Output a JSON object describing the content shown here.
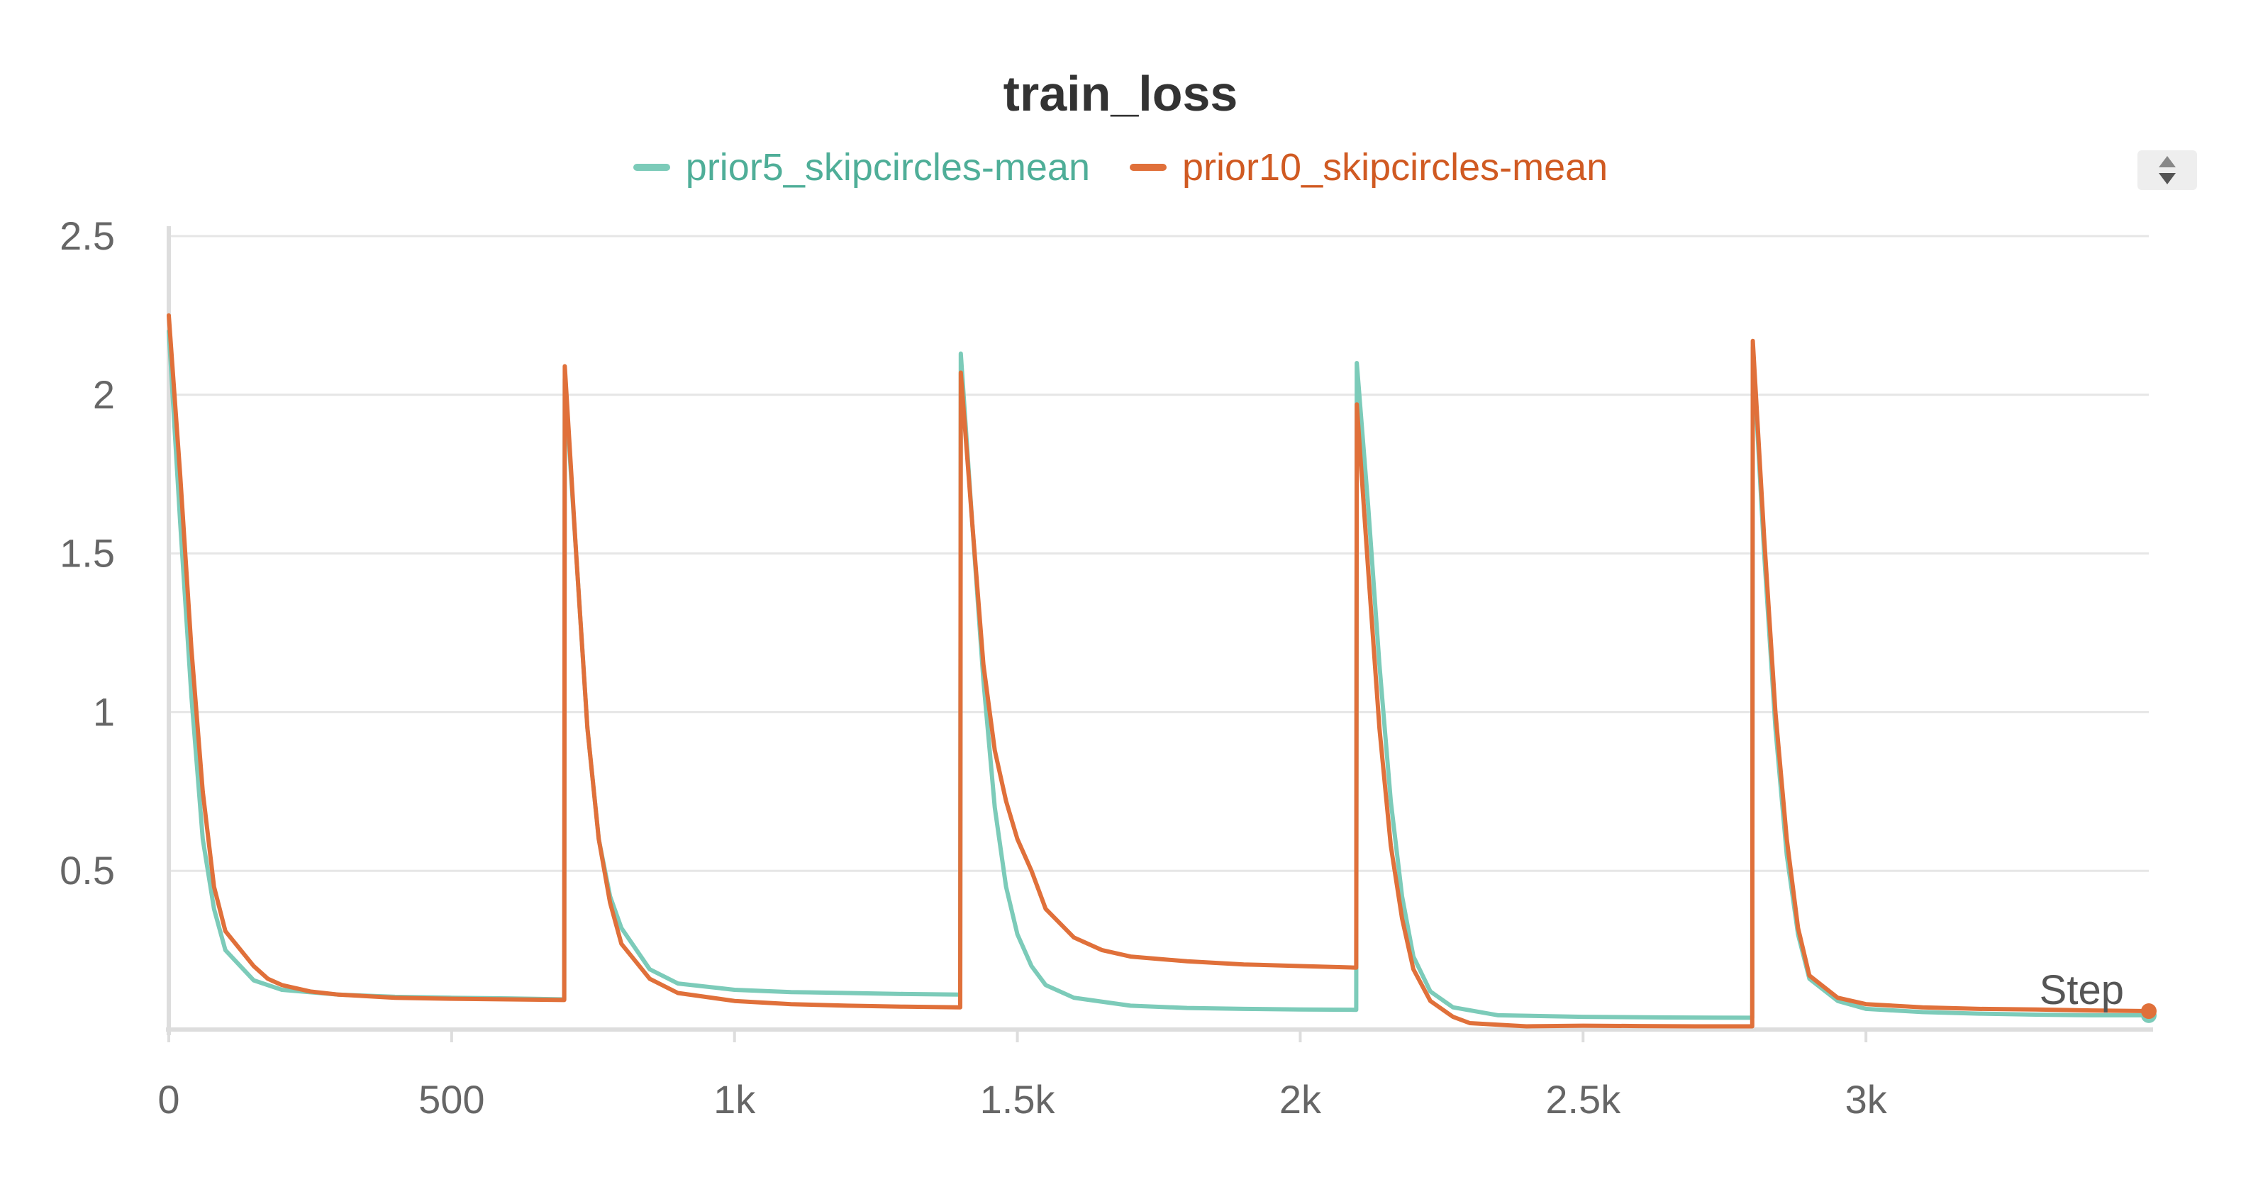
{
  "chart_data": {
    "type": "line",
    "title": "train_loss",
    "xlabel": "Step",
    "ylabel": "",
    "xlim": [
      0,
      3500
    ],
    "ylim": [
      0,
      2.5
    ],
    "grid": true,
    "legend_position": "top-center",
    "x_ticks": [
      {
        "value": 0,
        "label": "0"
      },
      {
        "value": 500,
        "label": "500"
      },
      {
        "value": 1000,
        "label": "1k"
      },
      {
        "value": 1500,
        "label": "1.5k"
      },
      {
        "value": 2000,
        "label": "2k"
      },
      {
        "value": 2500,
        "label": "2.5k"
      },
      {
        "value": 3000,
        "label": "3k"
      }
    ],
    "y_ticks": [
      {
        "value": 0.5,
        "label": "0.5"
      },
      {
        "value": 1,
        "label": "1"
      },
      {
        "value": 1.5,
        "label": "1.5"
      },
      {
        "value": 2,
        "label": "2"
      },
      {
        "value": 2.5,
        "label": "2.5"
      }
    ],
    "series": [
      {
        "name": "prior5_skipcircles-mean",
        "color": "#7ccbb9",
        "points": [
          [
            0,
            2.2
          ],
          [
            20,
            1.6
          ],
          [
            40,
            1.05
          ],
          [
            60,
            0.6
          ],
          [
            80,
            0.38
          ],
          [
            100,
            0.25
          ],
          [
            150,
            0.155
          ],
          [
            200,
            0.125
          ],
          [
            300,
            0.11
          ],
          [
            400,
            0.103
          ],
          [
            500,
            0.1
          ],
          [
            600,
            0.098
          ],
          [
            699,
            0.095
          ],
          [
            700,
            2.05
          ],
          [
            720,
            1.5
          ],
          [
            740,
            0.95
          ],
          [
            760,
            0.6
          ],
          [
            780,
            0.42
          ],
          [
            800,
            0.32
          ],
          [
            850,
            0.19
          ],
          [
            900,
            0.145
          ],
          [
            1000,
            0.125
          ],
          [
            1100,
            0.118
          ],
          [
            1200,
            0.115
          ],
          [
            1300,
            0.112
          ],
          [
            1399,
            0.11
          ],
          [
            1400,
            2.13
          ],
          [
            1420,
            1.6
          ],
          [
            1440,
            1.1
          ],
          [
            1460,
            0.7
          ],
          [
            1480,
            0.45
          ],
          [
            1500,
            0.3
          ],
          [
            1525,
            0.2
          ],
          [
            1550,
            0.14
          ],
          [
            1600,
            0.1
          ],
          [
            1700,
            0.075
          ],
          [
            1800,
            0.068
          ],
          [
            1900,
            0.065
          ],
          [
            2000,
            0.063
          ],
          [
            2099,
            0.062
          ],
          [
            2100,
            2.1
          ],
          [
            2120,
            1.65
          ],
          [
            2140,
            1.15
          ],
          [
            2160,
            0.72
          ],
          [
            2180,
            0.42
          ],
          [
            2200,
            0.23
          ],
          [
            2230,
            0.12
          ],
          [
            2270,
            0.07
          ],
          [
            2350,
            0.045
          ],
          [
            2500,
            0.04
          ],
          [
            2650,
            0.038
          ],
          [
            2799,
            0.037
          ],
          [
            2800,
            2.15
          ],
          [
            2820,
            1.5
          ],
          [
            2840,
            0.95
          ],
          [
            2860,
            0.55
          ],
          [
            2880,
            0.3
          ],
          [
            2900,
            0.16
          ],
          [
            2950,
            0.09
          ],
          [
            3000,
            0.065
          ],
          [
            3100,
            0.055
          ],
          [
            3200,
            0.05
          ],
          [
            3300,
            0.047
          ],
          [
            3400,
            0.045
          ],
          [
            3500,
            0.045
          ]
        ]
      },
      {
        "name": "prior10_skipcircles-mean",
        "color": "#e0703a",
        "points": [
          [
            0,
            2.25
          ],
          [
            20,
            1.75
          ],
          [
            40,
            1.2
          ],
          [
            60,
            0.75
          ],
          [
            80,
            0.45
          ],
          [
            100,
            0.31
          ],
          [
            150,
            0.2
          ],
          [
            175,
            0.16
          ],
          [
            200,
            0.14
          ],
          [
            250,
            0.12
          ],
          [
            300,
            0.11
          ],
          [
            400,
            0.1
          ],
          [
            500,
            0.097
          ],
          [
            600,
            0.095
          ],
          [
            699,
            0.093
          ],
          [
            700,
            2.09
          ],
          [
            720,
            1.5
          ],
          [
            740,
            0.95
          ],
          [
            760,
            0.6
          ],
          [
            780,
            0.4
          ],
          [
            800,
            0.27
          ],
          [
            850,
            0.16
          ],
          [
            900,
            0.115
          ],
          [
            1000,
            0.09
          ],
          [
            1100,
            0.08
          ],
          [
            1200,
            0.075
          ],
          [
            1300,
            0.072
          ],
          [
            1399,
            0.07
          ],
          [
            1400,
            2.07
          ],
          [
            1420,
            1.6
          ],
          [
            1440,
            1.15
          ],
          [
            1460,
            0.88
          ],
          [
            1480,
            0.72
          ],
          [
            1500,
            0.6
          ],
          [
            1525,
            0.5
          ],
          [
            1550,
            0.38
          ],
          [
            1600,
            0.29
          ],
          [
            1650,
            0.25
          ],
          [
            1700,
            0.23
          ],
          [
            1800,
            0.215
          ],
          [
            1900,
            0.205
          ],
          [
            2000,
            0.2
          ],
          [
            2099,
            0.195
          ],
          [
            2100,
            1.97
          ],
          [
            2120,
            1.45
          ],
          [
            2140,
            0.95
          ],
          [
            2160,
            0.58
          ],
          [
            2180,
            0.35
          ],
          [
            2200,
            0.19
          ],
          [
            2230,
            0.09
          ],
          [
            2270,
            0.04
          ],
          [
            2300,
            0.02
          ],
          [
            2400,
            0.01
          ],
          [
            2500,
            0.012
          ],
          [
            2600,
            0.011
          ],
          [
            2700,
            0.01
          ],
          [
            2799,
            0.01
          ],
          [
            2800,
            2.17
          ],
          [
            2820,
            1.55
          ],
          [
            2840,
            1.0
          ],
          [
            2860,
            0.6
          ],
          [
            2880,
            0.32
          ],
          [
            2900,
            0.17
          ],
          [
            2950,
            0.1
          ],
          [
            3000,
            0.08
          ],
          [
            3100,
            0.07
          ],
          [
            3200,
            0.065
          ],
          [
            3300,
            0.063
          ],
          [
            3400,
            0.06
          ],
          [
            3500,
            0.058
          ]
        ]
      }
    ]
  }
}
